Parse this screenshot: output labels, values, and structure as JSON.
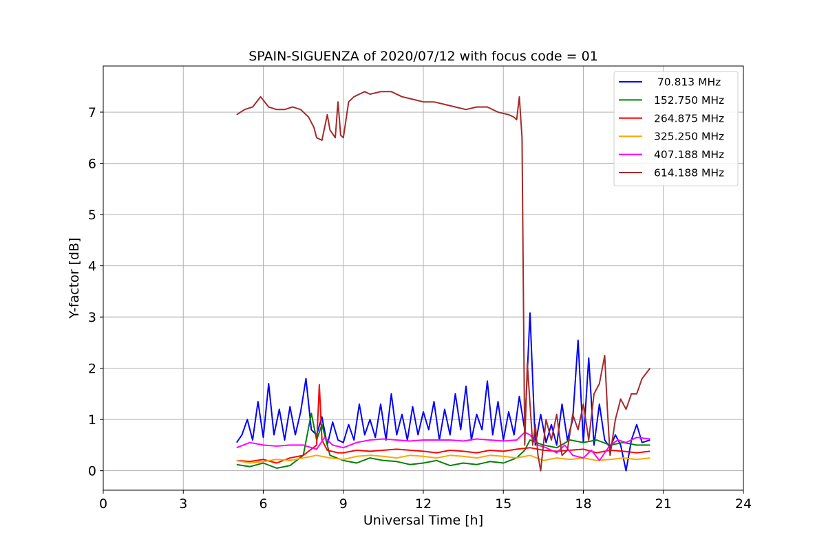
{
  "chart_data": {
    "type": "line",
    "title": "SPAIN-SIGUENZA of 2020/07/12 with focus code = 01",
    "xlabel": "Universal Time [h]",
    "ylabel": "Y-factor [dB]",
    "xlim": [
      0,
      24
    ],
    "ylim": [
      -0.38,
      7.9
    ],
    "xticks": [
      0,
      3,
      6,
      9,
      12,
      15,
      18,
      21,
      24
    ],
    "yticks": [
      0,
      1,
      2,
      3,
      4,
      5,
      6,
      7
    ],
    "grid": true,
    "legend_position": "top-right",
    "series": [
      {
        "name": " 70.813 MHz",
        "color": "#0000ff",
        "x": [
          5.0,
          5.2,
          5.4,
          5.6,
          5.8,
          6.0,
          6.2,
          6.4,
          6.6,
          6.8,
          7.0,
          7.2,
          7.4,
          7.6,
          7.8,
          8.0,
          8.2,
          8.4,
          8.6,
          8.8,
          9.0,
          9.2,
          9.4,
          9.6,
          9.8,
          10.0,
          10.2,
          10.4,
          10.6,
          10.8,
          11.0,
          11.2,
          11.4,
          11.6,
          11.8,
          12.0,
          12.2,
          12.4,
          12.6,
          12.8,
          13.0,
          13.2,
          13.4,
          13.6,
          13.8,
          14.0,
          14.2,
          14.4,
          14.6,
          14.8,
          15.0,
          15.2,
          15.4,
          15.6,
          15.8,
          16.0,
          16.2,
          16.4,
          16.6,
          16.8,
          17.0,
          17.2,
          17.4,
          17.6,
          17.8,
          18.0,
          18.2,
          18.4,
          18.6,
          18.8,
          19.0,
          19.2,
          19.4,
          19.6,
          19.8,
          20.0,
          20.2,
          20.5
        ],
        "y": [
          0.55,
          0.7,
          1.0,
          0.6,
          1.35,
          0.65,
          1.7,
          0.7,
          1.2,
          0.6,
          1.25,
          0.7,
          1.15,
          1.8,
          0.8,
          0.7,
          1.05,
          0.5,
          0.95,
          0.6,
          0.55,
          0.9,
          0.6,
          1.3,
          0.7,
          1.0,
          0.65,
          1.3,
          0.6,
          1.5,
          0.7,
          1.1,
          0.6,
          1.25,
          0.7,
          1.15,
          0.8,
          1.35,
          0.6,
          1.2,
          0.7,
          1.5,
          0.8,
          1.65,
          0.6,
          1.1,
          0.8,
          1.75,
          0.7,
          1.35,
          0.6,
          1.15,
          0.7,
          1.45,
          0.8,
          3.08,
          0.5,
          1.1,
          0.55,
          0.9,
          0.5,
          1.3,
          0.6,
          1.0,
          2.55,
          0.55,
          2.2,
          0.5,
          1.3,
          0.6,
          0.45,
          0.7,
          0.5,
          0.0,
          0.6,
          0.9,
          0.55,
          0.6
        ]
      },
      {
        "name": "152.750 MHz",
        "color": "#008000",
        "x": [
          5.0,
          5.5,
          6.0,
          6.5,
          7.0,
          7.5,
          7.8,
          8.0,
          8.2,
          8.5,
          9.0,
          9.5,
          10.0,
          10.5,
          11.0,
          11.5,
          12.0,
          12.5,
          13.0,
          13.5,
          14.0,
          14.5,
          15.0,
          15.5,
          15.8,
          16.0,
          16.5,
          17.0,
          17.5,
          18.0,
          18.5,
          19.0,
          19.5,
          20.0,
          20.5
        ],
        "y": [
          0.12,
          0.08,
          0.15,
          0.05,
          0.1,
          0.3,
          1.12,
          0.6,
          0.9,
          0.3,
          0.2,
          0.15,
          0.25,
          0.2,
          0.18,
          0.12,
          0.15,
          0.2,
          0.1,
          0.15,
          0.12,
          0.18,
          0.15,
          0.25,
          0.4,
          0.6,
          0.5,
          0.45,
          0.6,
          0.55,
          0.6,
          0.5,
          0.55,
          0.5,
          0.5
        ]
      },
      {
        "name": "264.875 MHz",
        "color": "#ff0000",
        "x": [
          5.0,
          5.5,
          6.0,
          6.5,
          7.0,
          7.5,
          8.0,
          8.1,
          8.2,
          8.4,
          8.8,
          9.0,
          9.5,
          10.0,
          10.5,
          11.0,
          11.5,
          12.0,
          12.5,
          13.0,
          13.5,
          14.0,
          14.5,
          15.0,
          15.5,
          16.0,
          16.5,
          17.0,
          17.5,
          18.0,
          18.5,
          19.0,
          19.5,
          20.0,
          20.5
        ],
        "y": [
          0.2,
          0.18,
          0.22,
          0.15,
          0.25,
          0.3,
          0.5,
          1.68,
          0.6,
          0.4,
          0.35,
          0.35,
          0.4,
          0.38,
          0.4,
          0.42,
          0.4,
          0.38,
          0.35,
          0.4,
          0.38,
          0.35,
          0.4,
          0.38,
          0.42,
          0.45,
          0.4,
          0.38,
          0.4,
          0.42,
          0.35,
          0.4,
          0.38,
          0.35,
          0.38
        ]
      },
      {
        "name": "325.250 MHz",
        "color": "#ffa500",
        "x": [
          5.0,
          5.5,
          6.0,
          6.5,
          7.0,
          7.5,
          8.0,
          8.5,
          9.0,
          9.5,
          10.0,
          10.5,
          11.0,
          11.5,
          12.0,
          12.5,
          13.0,
          13.5,
          14.0,
          14.5,
          15.0,
          15.5,
          16.0,
          16.5,
          17.0,
          17.5,
          18.0,
          18.5,
          19.0,
          19.5,
          20.0,
          20.5
        ],
        "y": [
          0.2,
          0.15,
          0.18,
          0.22,
          0.2,
          0.25,
          0.3,
          0.25,
          0.22,
          0.28,
          0.3,
          0.28,
          0.25,
          0.3,
          0.28,
          0.25,
          0.3,
          0.28,
          0.25,
          0.3,
          0.28,
          0.25,
          0.3,
          0.2,
          0.25,
          0.22,
          0.25,
          0.2,
          0.22,
          0.25,
          0.22,
          0.25
        ]
      },
      {
        "name": "407.188 MHz",
        "color": "#ff00ff",
        "x": [
          5.0,
          5.5,
          6.0,
          6.5,
          7.0,
          7.5,
          8.0,
          8.3,
          8.6,
          9.0,
          9.5,
          10.0,
          10.5,
          11.0,
          11.5,
          12.0,
          12.5,
          13.0,
          13.5,
          14.0,
          14.5,
          15.0,
          15.5,
          15.8,
          16.0,
          16.3,
          16.6,
          17.0,
          17.3,
          17.6,
          18.0,
          18.3,
          18.6,
          19.0,
          19.3,
          19.6,
          20.0,
          20.5
        ],
        "y": [
          0.45,
          0.55,
          0.5,
          0.48,
          0.5,
          0.5,
          0.42,
          0.65,
          0.5,
          0.45,
          0.55,
          0.6,
          0.62,
          0.6,
          0.58,
          0.6,
          0.6,
          0.6,
          0.58,
          0.62,
          0.6,
          0.58,
          0.6,
          0.75,
          0.7,
          0.5,
          0.45,
          0.35,
          0.5,
          0.3,
          0.25,
          0.4,
          0.2,
          0.5,
          0.6,
          0.55,
          0.65,
          0.62
        ]
      },
      {
        "name": "614.188 MHz",
        "color": "#a52a2a",
        "x": [
          5.0,
          5.3,
          5.6,
          5.9,
          6.2,
          6.5,
          6.8,
          7.1,
          7.4,
          7.7,
          7.9,
          8.0,
          8.2,
          8.4,
          8.5,
          8.7,
          8.8,
          8.9,
          9.0,
          9.2,
          9.4,
          9.6,
          9.8,
          10.0,
          10.4,
          10.8,
          11.2,
          11.6,
          12.0,
          12.4,
          12.8,
          13.2,
          13.6,
          14.0,
          14.4,
          14.8,
          15.2,
          15.4,
          15.5,
          15.6,
          15.7,
          15.8,
          15.9,
          16.0,
          16.1,
          16.2,
          16.3,
          16.4,
          16.6,
          16.8,
          17.0,
          17.2,
          17.4,
          17.6,
          17.8,
          18.0,
          18.2,
          18.4,
          18.6,
          18.8,
          18.9,
          19.0,
          19.2,
          19.4,
          19.6,
          19.8,
          20.0,
          20.2,
          20.5
        ],
        "y": [
          6.95,
          7.05,
          7.1,
          7.3,
          7.1,
          7.05,
          7.05,
          7.1,
          7.05,
          6.9,
          6.7,
          6.5,
          6.45,
          6.95,
          6.65,
          6.5,
          7.2,
          6.55,
          6.5,
          7.2,
          7.3,
          7.35,
          7.4,
          7.35,
          7.4,
          7.4,
          7.3,
          7.25,
          7.2,
          7.2,
          7.15,
          7.1,
          7.05,
          7.1,
          7.1,
          7.0,
          6.95,
          6.9,
          6.85,
          7.3,
          6.5,
          0.5,
          2.1,
          1.3,
          0.5,
          0.9,
          0.3,
          0.0,
          1.0,
          0.6,
          1.1,
          0.3,
          0.4,
          1.1,
          0.8,
          1.3,
          0.6,
          1.5,
          1.7,
          2.25,
          1.2,
          0.3,
          1.0,
          1.4,
          1.2,
          1.5,
          1.5,
          1.8,
          2.0
        ]
      }
    ]
  }
}
